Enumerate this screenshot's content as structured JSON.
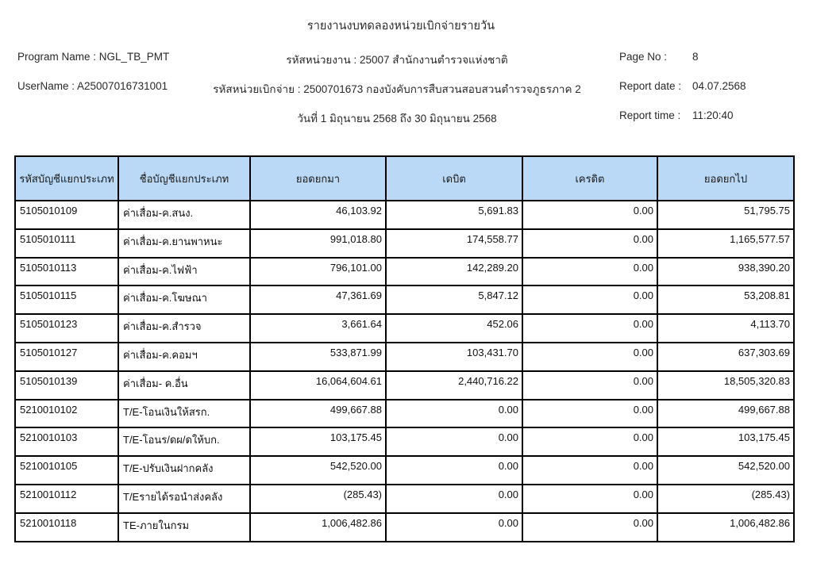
{
  "colors": {
    "table_header_bg": "#b9d9f7",
    "table_border": "#000000",
    "text": "#1f1f1f"
  },
  "report": {
    "title": "รายงานงบทดลองหน่วยเบิกจ่ายรายวัน",
    "program_name": "Program Name : NGL_TB_PMT",
    "user_name": "UserName : A25007016731001",
    "agency": "รหัสหน่วยงาน : 25007 สำนักงานตำรวจแห่งชาติ",
    "disbursement_unit": "รหัสหน่วยเบิกจ่าย : 2500701673 กองบังคับการสืบสวนสอบสวนตำรวจภูธรภาค 2",
    "date_range": "วันที่ 1 มิถุนายน 2568 ถึง 30 มิถุนายน 2568",
    "page_no_label": "Page No :",
    "page_no_value": "8",
    "report_date_label": "Report date :",
    "report_date_value": "04.07.2568",
    "report_time_label": "Report time :",
    "report_time_value": "11:20:40"
  },
  "table": {
    "columns": [
      "รหัสบัญชีแยกประเภท",
      "ชื่อบัญชีแยกประเภท",
      "ยอดยกมา",
      "เดบิต",
      "เครดิต",
      "ยอดยกไป"
    ],
    "rows": [
      [
        "5105010109",
        "ค่าเสื่อม-ค.สนง.",
        "46,103.92",
        "5,691.83",
        "0.00",
        "51,795.75"
      ],
      [
        "5105010111",
        "ค่าเสื่อม-ค.ยานพาหนะ",
        "991,018.80",
        "174,558.77",
        "0.00",
        "1,165,577.57"
      ],
      [
        "5105010113",
        "ค่าเสื่อม-ค.ไฟฟ้า",
        "796,101.00",
        "142,289.20",
        "0.00",
        "938,390.20"
      ],
      [
        "5105010115",
        "ค่าเสื่อม-ค.โฆษณา",
        "47,361.69",
        "5,847.12",
        "0.00",
        "53,208.81"
      ],
      [
        "5105010123",
        "ค่าเสื่อม-ค.สำรวจ",
        "3,661.64",
        "452.06",
        "0.00",
        "4,113.70"
      ],
      [
        "5105010127",
        "ค่าเสื่อม-ค.คอมฯ",
        "533,871.99",
        "103,431.70",
        "0.00",
        "637,303.69"
      ],
      [
        "5105010139",
        "ค่าเสื่อม- ค.อื่น",
        "16,064,604.61",
        "2,440,716.22",
        "0.00",
        "18,505,320.83"
      ],
      [
        "5210010102",
        "T/E-โอนเงินให้สรก.",
        "499,667.88",
        "0.00",
        "0.00",
        "499,667.88"
      ],
      [
        "5210010103",
        "T/E-โอนร/ดผ/ดให้บก.",
        "103,175.45",
        "0.00",
        "0.00",
        "103,175.45"
      ],
      [
        "5210010105",
        "T/E-ปรับเงินฝากคลัง",
        "542,520.00",
        "0.00",
        "0.00",
        "542,520.00"
      ],
      [
        "5210010112",
        "T/Eรายได้รอนำส่งคลัง",
        "(285.43)",
        "0.00",
        "0.00",
        "(285.43)"
      ],
      [
        "5210010118",
        "TE-ภายในกรม",
        "1,006,482.86",
        "0.00",
        "0.00",
        "1,006,482.86"
      ]
    ]
  }
}
